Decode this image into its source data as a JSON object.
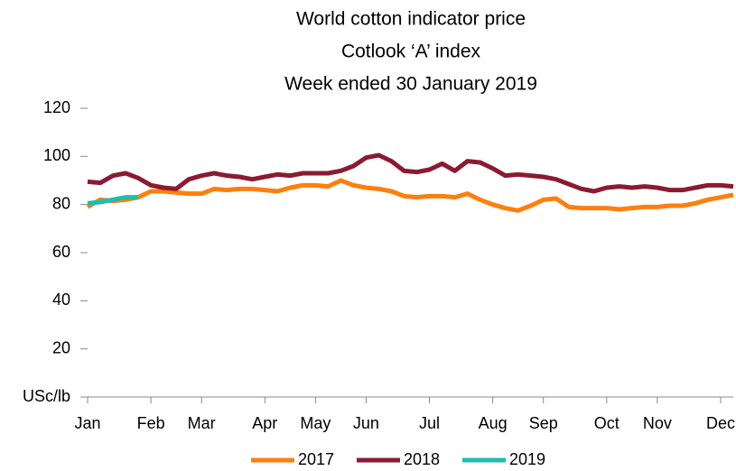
{
  "chart_data": {
    "type": "line",
    "title": [
      "World cotton indicator price",
      "Cotlook ‘A’ index",
      "Week ended 30 January 2019"
    ],
    "categories": [
      "Jan",
      null,
      null,
      null,
      null,
      "Feb",
      null,
      null,
      null,
      "Mar",
      null,
      null,
      null,
      null,
      "Apr",
      null,
      null,
      null,
      "May",
      null,
      null,
      null,
      "Jun",
      null,
      null,
      null,
      null,
      "Jul",
      null,
      null,
      null,
      null,
      "Aug",
      null,
      null,
      null,
      "Sep",
      null,
      null,
      null,
      null,
      "Oct",
      null,
      null,
      null,
      "Nov",
      null,
      null,
      null,
      null,
      "Dec",
      null
    ],
    "series": [
      {
        "name": "2017",
        "color": "#ff7f0e",
        "values": [
          79,
          82,
          81.5,
          82,
          83,
          85.5,
          85.5,
          85,
          84.5,
          84.5,
          86.5,
          86,
          86.5,
          86.5,
          86,
          85.5,
          87,
          88,
          88,
          87.5,
          90,
          88,
          87,
          86.5,
          85.5,
          83.5,
          83,
          83.5,
          83.5,
          83,
          84.5,
          82,
          80,
          78.5,
          77.5,
          79.5,
          82,
          82.5,
          79,
          78.5,
          78.5,
          78.5,
          78,
          78.5,
          79,
          79,
          79.5,
          79.5,
          80.5,
          82,
          83,
          84
        ]
      },
      {
        "name": "2018",
        "color": "#8b1a32",
        "values": [
          89.5,
          89,
          92,
          93,
          91,
          88,
          87,
          86.5,
          90.5,
          92,
          93,
          92,
          91.5,
          90.5,
          91.5,
          92.5,
          92,
          93,
          93,
          93,
          94,
          96,
          99.5,
          100.5,
          98,
          94,
          93.5,
          94.5,
          97,
          94,
          98,
          97.5,
          95,
          92,
          92.5,
          92,
          91.5,
          90.5,
          88.5,
          86.5,
          85.5,
          87,
          87.5,
          87,
          87.5,
          87,
          86,
          86,
          87,
          88,
          88,
          87.5
        ]
      },
      {
        "name": "2019",
        "color": "#1fbcb0",
        "values": [
          80.5,
          81,
          82,
          83,
          83,
          null,
          null,
          null,
          null,
          null,
          null,
          null,
          null,
          null,
          null,
          null,
          null,
          null,
          null,
          null,
          null,
          null,
          null,
          null,
          null,
          null,
          null,
          null,
          null,
          null,
          null,
          null,
          null,
          null,
          null,
          null,
          null,
          null,
          null,
          null,
          null,
          null,
          null,
          null,
          null,
          null,
          null,
          null,
          null,
          null,
          null,
          null
        ]
      }
    ],
    "ylim": [
      0,
      120
    ],
    "yticks": [
      {
        "value": 0,
        "label": "USc/lb"
      },
      20,
      40,
      60,
      80,
      100,
      120
    ],
    "grid": false,
    "legend": "bottom"
  }
}
